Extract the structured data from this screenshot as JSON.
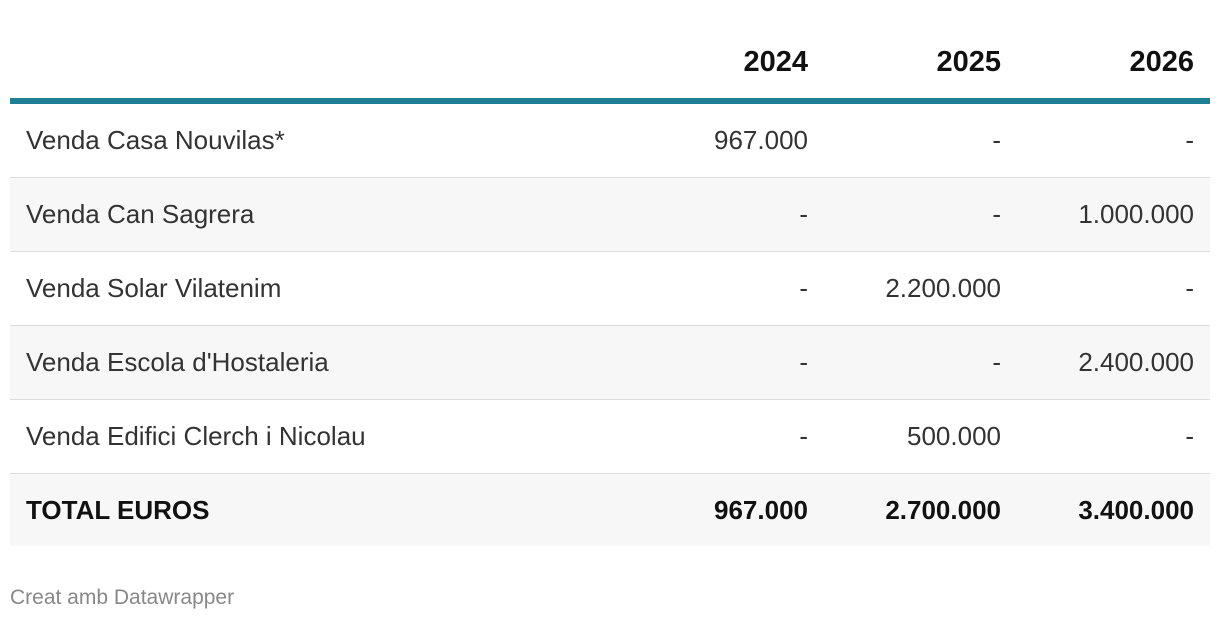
{
  "chart_data": {
    "type": "table",
    "columns": [
      "",
      "2024",
      "2025",
      "2026"
    ],
    "rows": [
      {
        "label": "Venda Casa Nouvilas*",
        "values": [
          "967.000",
          "-",
          "-"
        ]
      },
      {
        "label": "Venda Can Sagrera",
        "values": [
          "-",
          "-",
          "1.000.000"
        ]
      },
      {
        "label": "Venda Solar Vilatenim",
        "values": [
          "-",
          "2.200.000",
          "-"
        ]
      },
      {
        "label": "Venda Escola d'Hostaleria",
        "values": [
          "-",
          "-",
          "2.400.000"
        ]
      },
      {
        "label": "Venda Edifici Clerch i Nicolau",
        "values": [
          "-",
          "500.000",
          "-"
        ]
      }
    ],
    "total": {
      "label": "TOTAL EUROS",
      "values": [
        "967.000",
        "2.700.000",
        "3.400.000"
      ]
    },
    "header_rule_color": "#1f7f95"
  },
  "footer": {
    "credit": "Creat amb Datawrapper"
  }
}
